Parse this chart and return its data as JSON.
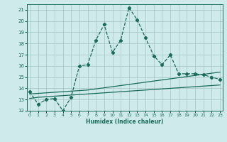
{
  "xlabel": "Humidex (Indice chaleur)",
  "background_color": "#ceeaea",
  "grid_color": "#aacaca",
  "line_color": "#1a6b5a",
  "x_data": [
    0,
    1,
    2,
    3,
    4,
    5,
    6,
    7,
    8,
    9,
    10,
    11,
    12,
    13,
    14,
    15,
    16,
    17,
    18,
    19,
    20,
    21,
    22,
    23
  ],
  "y_main": [
    13.7,
    12.6,
    13.0,
    13.1,
    12.0,
    13.2,
    16.0,
    16.1,
    18.3,
    19.7,
    17.2,
    18.3,
    21.2,
    20.1,
    18.5,
    16.9,
    16.1,
    17.0,
    15.3,
    15.3,
    15.3,
    15.2,
    15.0,
    14.8
  ],
  "y_line1": [
    13.1,
    13.2,
    13.25,
    13.3,
    13.35,
    13.4,
    13.45,
    13.5,
    13.55,
    13.6,
    13.65,
    13.7,
    13.75,
    13.8,
    13.85,
    13.9,
    13.95,
    14.0,
    14.05,
    14.1,
    14.15,
    14.2,
    14.25,
    14.3
  ],
  "y_line2": [
    13.5,
    13.55,
    13.6,
    13.65,
    13.7,
    13.75,
    13.8,
    13.85,
    13.95,
    14.05,
    14.15,
    14.25,
    14.35,
    14.45,
    14.55,
    14.65,
    14.75,
    14.85,
    14.95,
    15.05,
    15.15,
    15.25,
    15.35,
    15.45
  ],
  "ylim": [
    12,
    21.5
  ],
  "xlim": [
    -0.3,
    23.3
  ],
  "yticks": [
    12,
    13,
    14,
    15,
    16,
    17,
    18,
    19,
    20,
    21
  ],
  "xticks": [
    0,
    1,
    2,
    3,
    4,
    5,
    6,
    7,
    8,
    9,
    10,
    11,
    12,
    13,
    14,
    15,
    16,
    17,
    18,
    19,
    20,
    21,
    22,
    23
  ]
}
